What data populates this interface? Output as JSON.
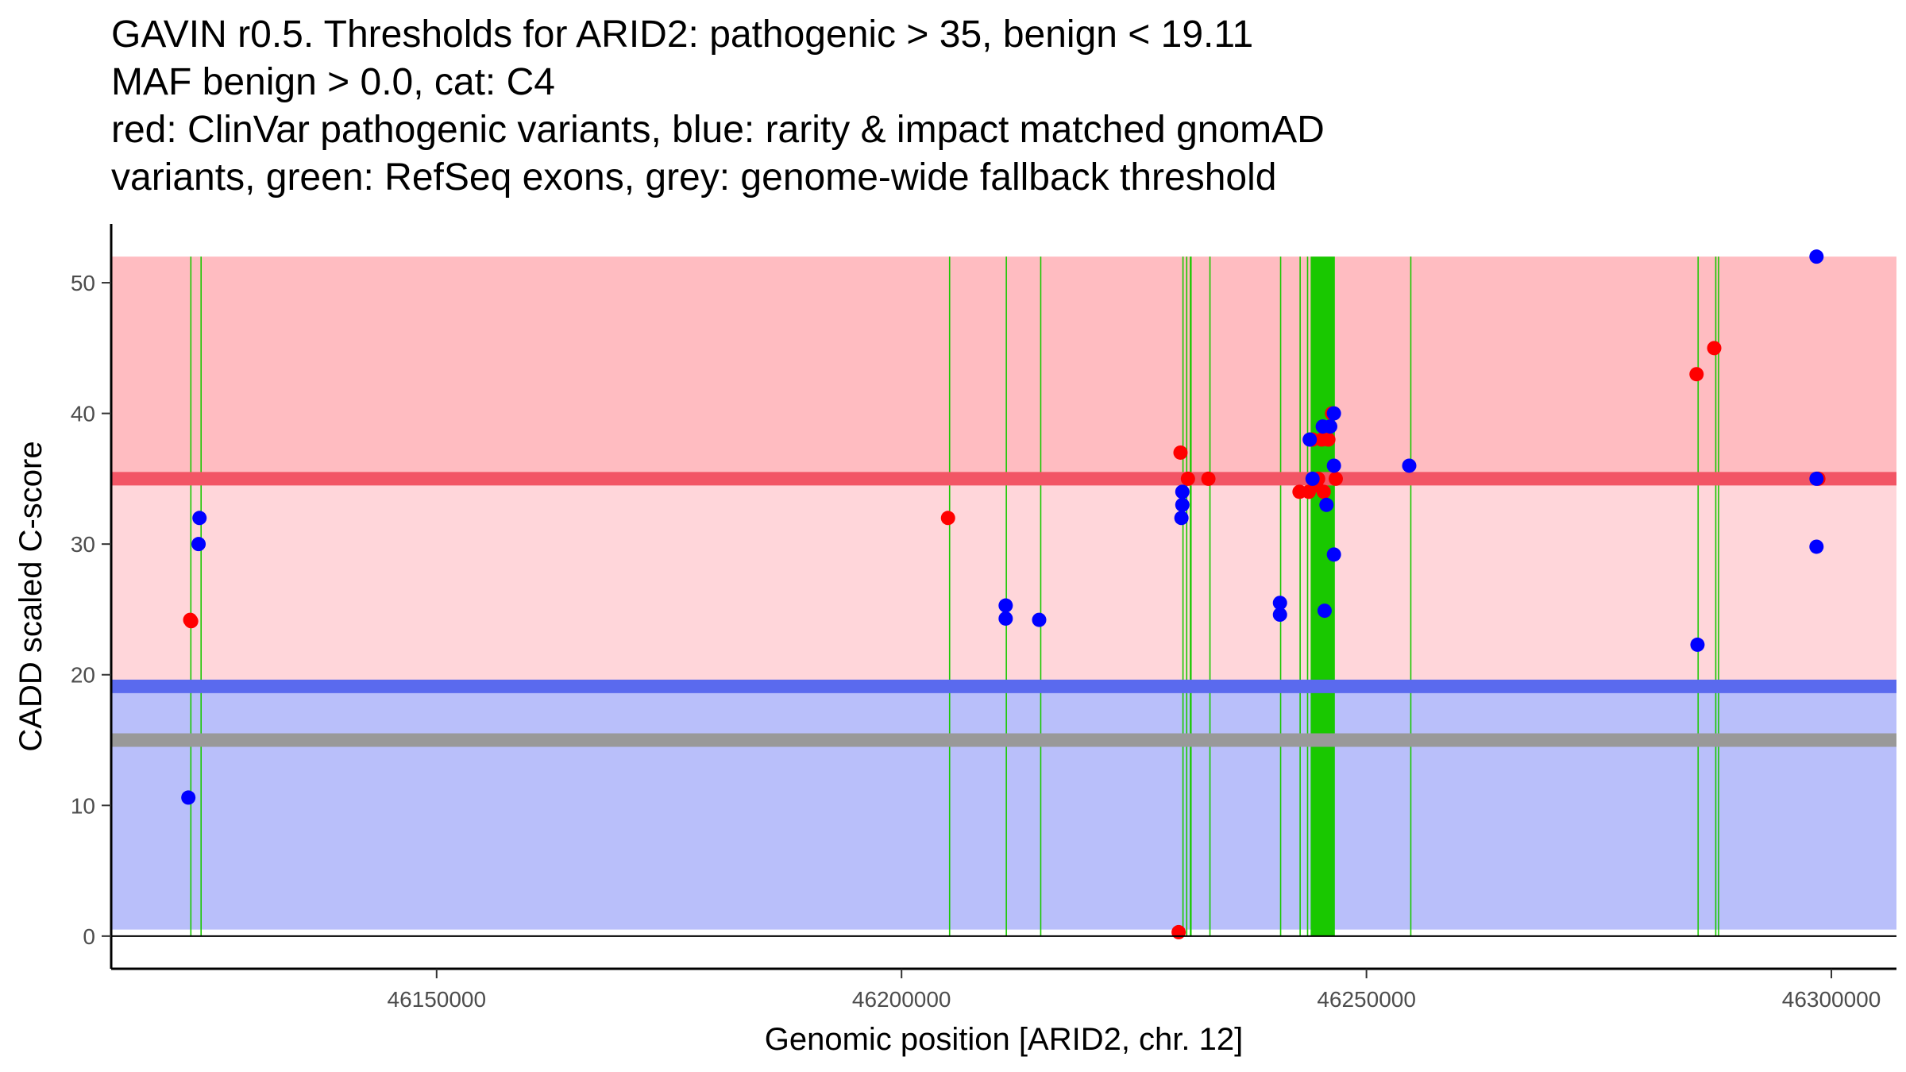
{
  "chart_data": {
    "type": "scatter",
    "title_lines": [
      "GAVIN r0.5. Thresholds for ARID2: pathogenic > 35, benign < 19.11",
      "MAF benign > 0.0, cat: C4",
      "red: ClinVar pathogenic variants, blue: rarity & impact matched gnomAD",
      "variants, green: RefSeq exons, grey: genome-wide fallback threshold"
    ],
    "xlabel": "Genomic position [ARID2, chr. 12]",
    "ylabel": "CADD scaled C-score",
    "xlim": [
      46115000,
      46307000
    ],
    "ylim": [
      -2.5,
      54.5
    ],
    "x_ticks": [
      46150000,
      46200000,
      46250000,
      46300000
    ],
    "x_tick_labels": [
      "46150000",
      "46200000",
      "46250000",
      "46300000"
    ],
    "y_ticks": [
      0,
      10,
      20,
      30,
      40,
      50
    ],
    "y_tick_labels": [
      "0",
      "10",
      "20",
      "30",
      "40",
      "50"
    ],
    "thresholds": {
      "pathogenic": 35,
      "benign": 19.11,
      "genome_wide_fallback": 15,
      "region_top": 52,
      "region_bottom": 0.5
    },
    "colors": {
      "pathogenic_region": "#ffbcc1",
      "middle_region": "#ffd6da",
      "benign_region": "#b9bffa",
      "pathogenic_line": "#f25565",
      "benign_line": "#5a6aee",
      "fallback_line": "#999999",
      "exon": "#19c800",
      "clinvar": "#ff0000",
      "gnomad": "#0000ff",
      "axis": "#000000"
    },
    "exons": [
      [
        46123500,
        46123560
      ],
      [
        46124600,
        46124660
      ],
      [
        46205100,
        46205160
      ],
      [
        46211200,
        46211260
      ],
      [
        46214900,
        46214960
      ],
      [
        46230200,
        46230300
      ],
      [
        46230600,
        46230700
      ],
      [
        46231000,
        46231200
      ],
      [
        46233100,
        46233160
      ],
      [
        46240700,
        46240760
      ],
      [
        46242800,
        46242860
      ],
      [
        46243600,
        46243700
      ],
      [
        46244000,
        46246600
      ],
      [
        46254700,
        46254760
      ],
      [
        46285600,
        46285660
      ],
      [
        46287500,
        46287600
      ],
      [
        46287800,
        46287900
      ]
    ],
    "series": [
      {
        "name": "ClinVar pathogenic variants",
        "color": "#ff0000",
        "points": [
          [
            46123500,
            24.2
          ],
          [
            46123600,
            24.1
          ],
          [
            46205000,
            32
          ],
          [
            46229800,
            0.3
          ],
          [
            46230000,
            37
          ],
          [
            46230800,
            35
          ],
          [
            46233000,
            35
          ],
          [
            46242800,
            34
          ],
          [
            46243800,
            34
          ],
          [
            46244200,
            38
          ],
          [
            46244600,
            34.5
          ],
          [
            46244800,
            35
          ],
          [
            46245200,
            38
          ],
          [
            46245400,
            34
          ],
          [
            46245900,
            38
          ],
          [
            46246300,
            40
          ],
          [
            46246700,
            35
          ],
          [
            46285500,
            43
          ],
          [
            46287400,
            45
          ],
          [
            46298600,
            35
          ]
        ]
      },
      {
        "name": "rarity & impact matched gnomAD variants",
        "color": "#0000ff",
        "points": [
          [
            46123300,
            10.6
          ],
          [
            46124400,
            30
          ],
          [
            46124500,
            32
          ],
          [
            46211200,
            25.3
          ],
          [
            46211200,
            24.3
          ],
          [
            46214800,
            24.2
          ],
          [
            46230200,
            34
          ],
          [
            46230200,
            33
          ],
          [
            46230100,
            32
          ],
          [
            46240700,
            25.5
          ],
          [
            46240700,
            24.6
          ],
          [
            46243900,
            38
          ],
          [
            46244200,
            35
          ],
          [
            46245300,
            39
          ],
          [
            46245500,
            24.9
          ],
          [
            46245700,
            33
          ],
          [
            46246100,
            39
          ],
          [
            46246500,
            40
          ],
          [
            46246500,
            36
          ],
          [
            46246500,
            29.2
          ],
          [
            46254600,
            36
          ],
          [
            46285600,
            22.3
          ],
          [
            46298400,
            52
          ],
          [
            46298400,
            35
          ],
          [
            46298400,
            29.8
          ]
        ]
      }
    ]
  }
}
